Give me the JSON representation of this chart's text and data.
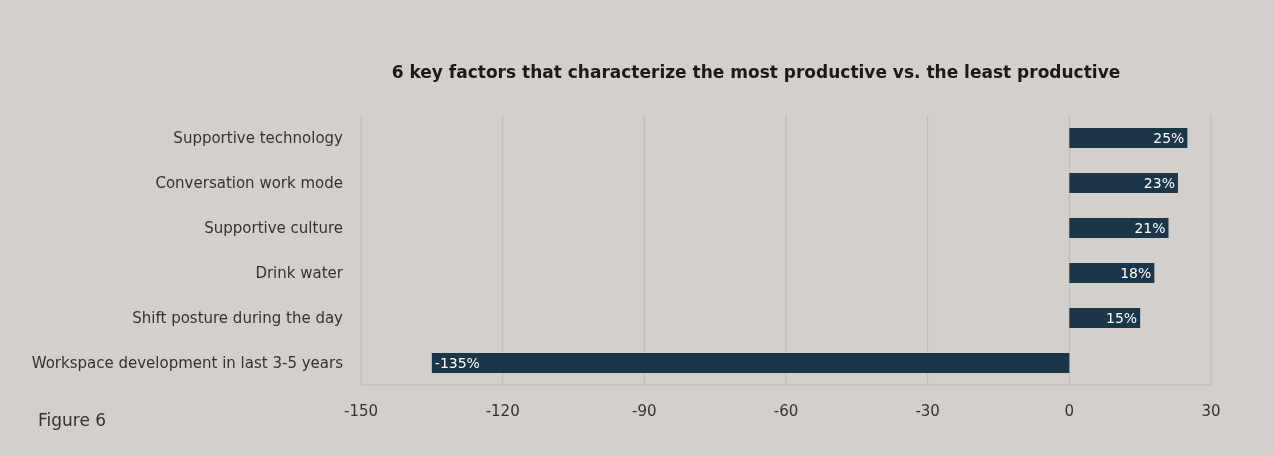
{
  "chart_data": {
    "type": "bar",
    "orientation": "horizontal",
    "title": "6 key factors that characterize the most productive vs. the least productive",
    "categories": [
      "Supportive technology",
      "Conversation work mode",
      "Supportive culture",
      "Drink water",
      "Shift posture during the day",
      "Workspace development in last 3-5 years"
    ],
    "values": [
      25,
      23,
      21,
      18,
      15,
      -135
    ],
    "value_labels": [
      "25%",
      "23%",
      "21%",
      "18%",
      "15%",
      "-135%"
    ],
    "color": "#1b3549",
    "xlim": [
      -150,
      30
    ],
    "xticks": [
      -150,
      -120,
      -90,
      -60,
      -30,
      0,
      30
    ],
    "grid": "x",
    "annotations": [
      "Figure 6"
    ]
  }
}
